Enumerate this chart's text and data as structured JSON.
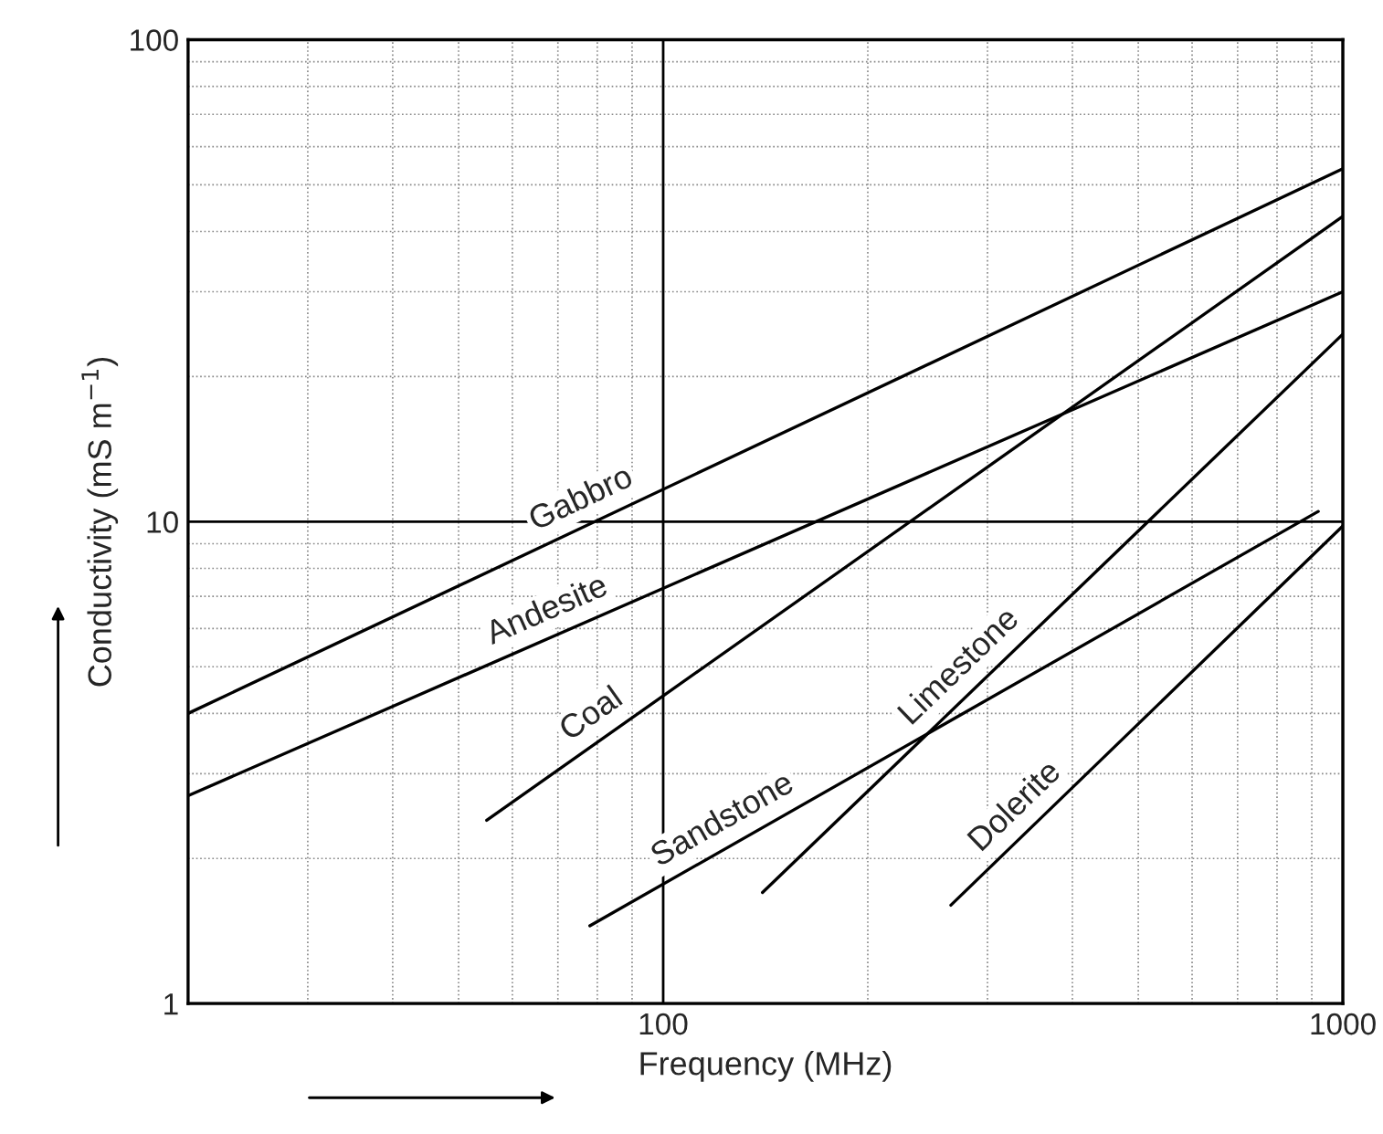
{
  "chart_data": {
    "type": "line",
    "xlabel": "Frequency (MHz)",
    "ylabel": "Conductivity (mS m$^{−1}$)",
    "log": "xy",
    "xlim": [
      20,
      1000
    ],
    "ylim": [
      1,
      100
    ],
    "xticks": [
      100,
      1000
    ],
    "yticks": [
      1,
      10,
      100
    ],
    "grid": true,
    "marker": "none",
    "line_style": "solid",
    "series": [
      {
        "name": "Gabbro",
        "color": "#000000",
        "x": [
          20,
          1000
        ],
        "values": [
          4.0,
          54
        ]
      },
      {
        "name": "Andesite",
        "color": "#000000",
        "x": [
          20,
          1000
        ],
        "values": [
          2.7,
          30
        ]
      },
      {
        "name": "Coal",
        "color": "#000000",
        "x": [
          55,
          1000
        ],
        "values": [
          2.4,
          43
        ]
      },
      {
        "name": "Sandstone",
        "color": "#000000",
        "x": [
          78,
          920
        ],
        "values": [
          1.45,
          10.5
        ]
      },
      {
        "name": "Limestone",
        "color": "#000000",
        "x": [
          140,
          1000
        ],
        "values": [
          1.7,
          24.5
        ]
      },
      {
        "name": "Dolerite",
        "color": "#000000",
        "x": [
          265,
          1000
        ],
        "values": [
          1.6,
          9.8
        ]
      }
    ]
  }
}
